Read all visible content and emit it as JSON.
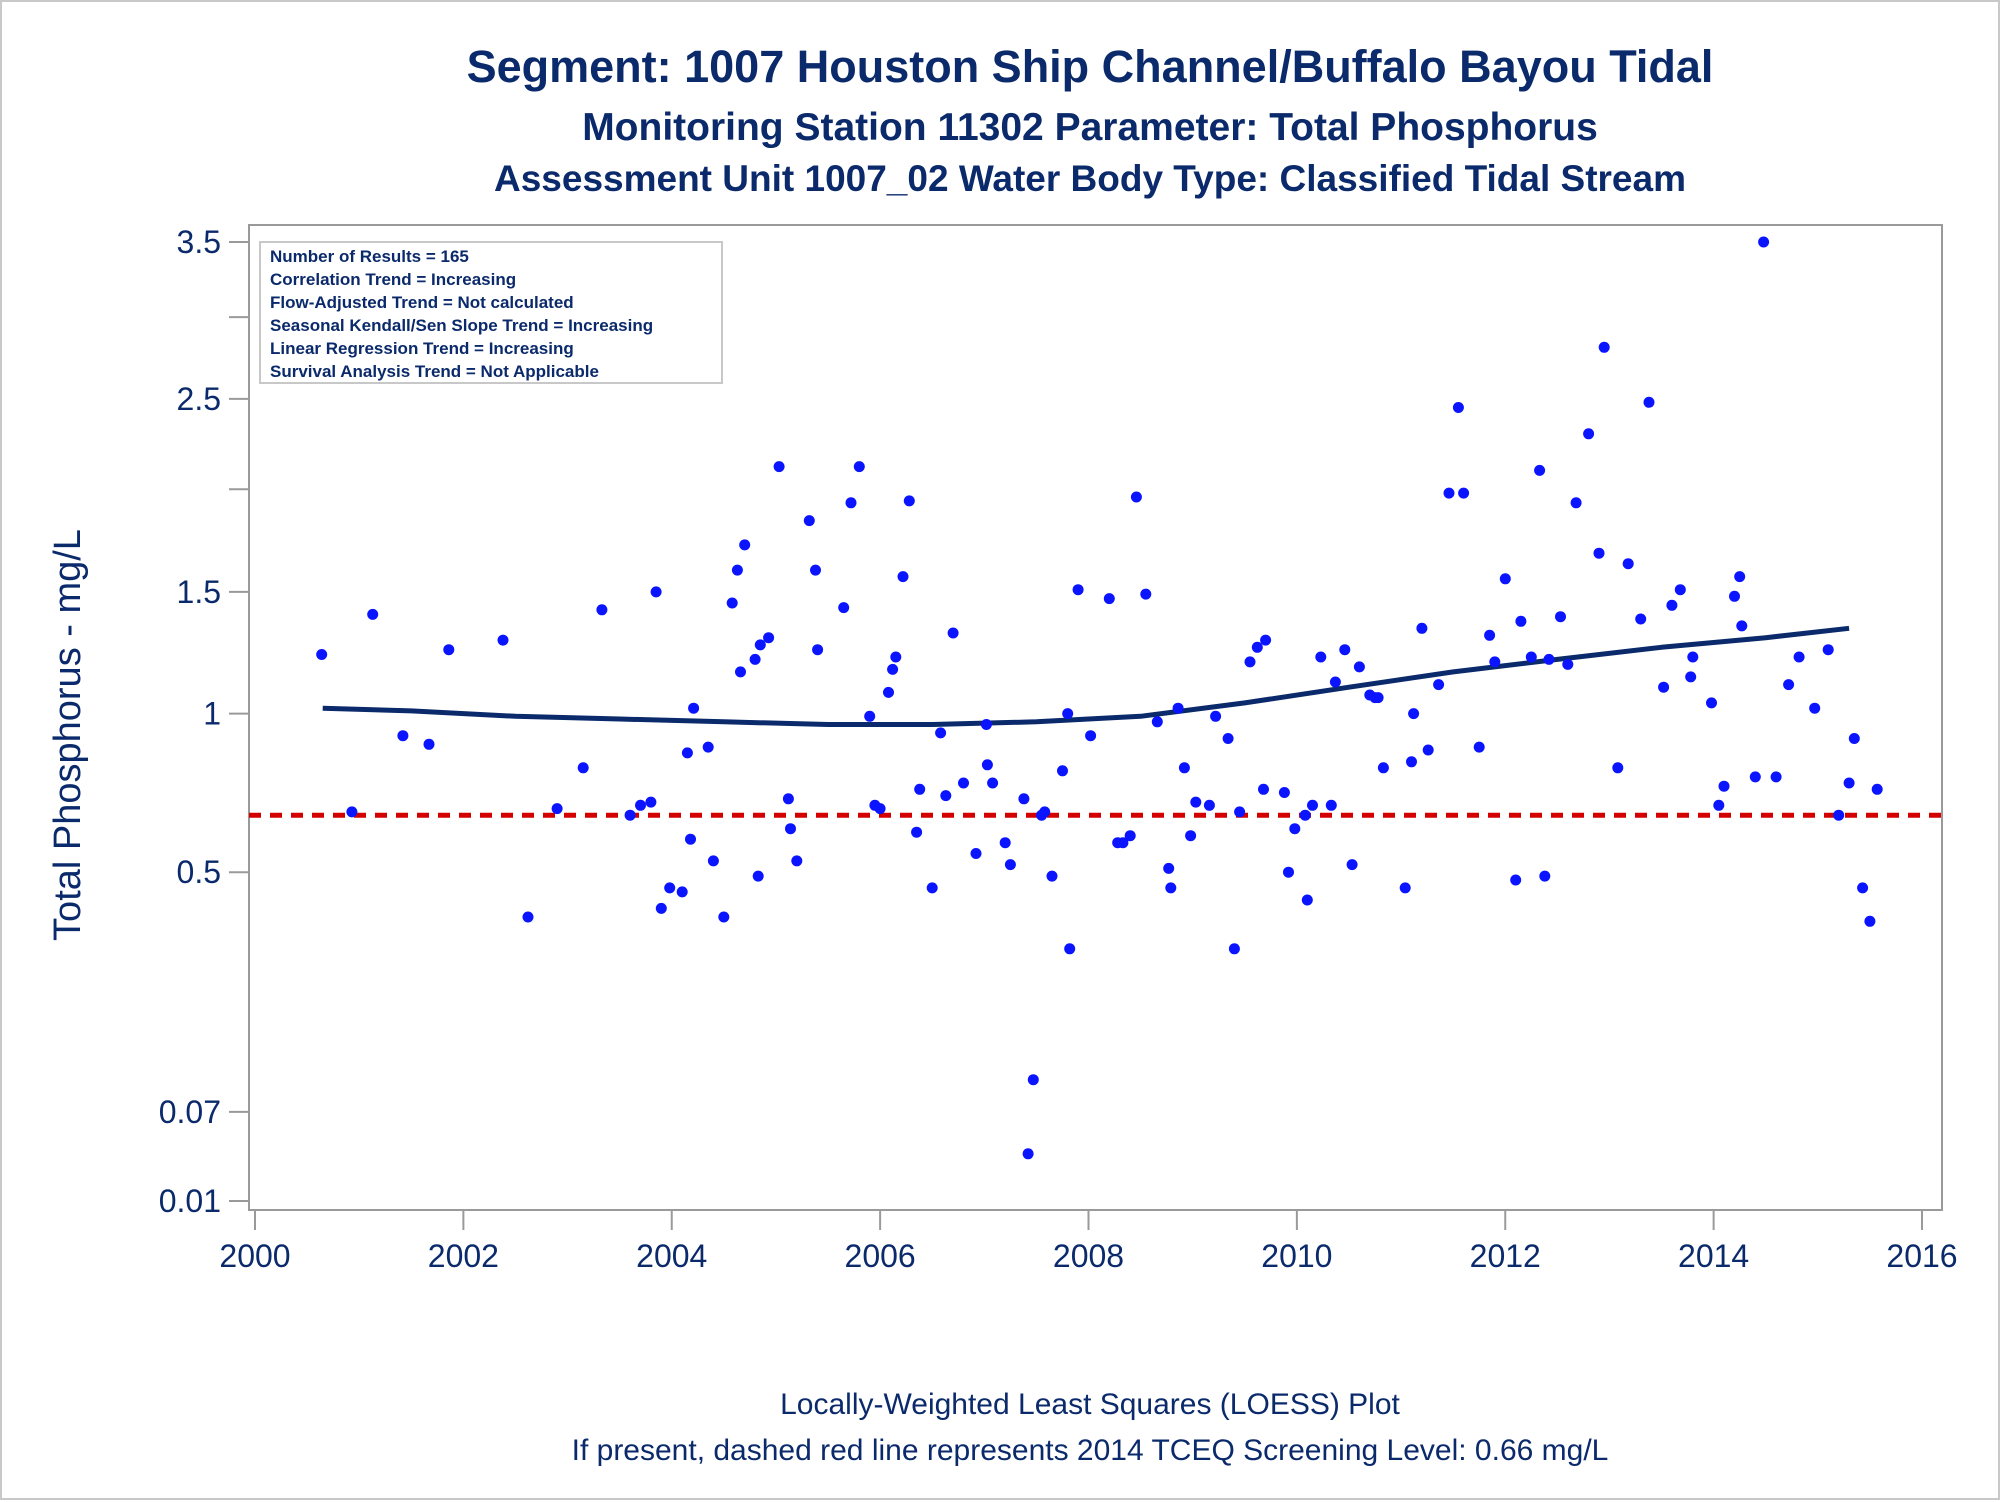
{
  "titles": {
    "line1": "Segment: 1007  Houston Ship Channel/Buffalo Bayou Tidal",
    "line2": "Monitoring Station 11302 Parameter: Total Phosphorus",
    "line3": "Assessment Unit 1007_02   Water Body Type: Classified Tidal Stream"
  },
  "info_box": [
    "Number of Results = 165",
    "Correlation Trend = Increasing",
    "Flow-Adjusted Trend = Not calculated",
    "Seasonal Kendall/Sen Slope Trend = Increasing",
    "Linear Regression Trend = Increasing",
    "Survival Analysis Trend = Not Applicable"
  ],
  "footer": {
    "line1": "Locally-Weighted Least Squares (LOESS) Plot",
    "line2": "If present, dashed red line represents 2014 TCEQ Screening Level: 0.66 mg/L"
  },
  "colors": {
    "points": "#0a14ff",
    "loess": "#0b2a6b",
    "screening": "#d40000",
    "text": "#0b2a6b",
    "axis": "#9a9a9a"
  },
  "chart_data": {
    "type": "scatter",
    "ylabel": "Total Phosphorus - mg/L",
    "xlabel": "",
    "xlim": [
      2000,
      2016
    ],
    "ylim_display": [
      0.01,
      3.5
    ],
    "y_scale": "square-root",
    "x_ticks": [
      "2000",
      "2002",
      "2004",
      "2006",
      "2008",
      "2010",
      "2012",
      "2014",
      "2016"
    ],
    "y_ticks": [
      "3.5",
      "2.5",
      "1.5",
      "1",
      "0.5",
      "0.07",
      "0.01"
    ],
    "y_tick_values": [
      3.5,
      2.5,
      1.5,
      1,
      0.5,
      0.07,
      0.01
    ],
    "y_minor_tick_values": [
      3.0,
      2.0
    ],
    "screening_level": 0.66,
    "grid": false,
    "loess": [
      [
        2000.65,
        1.02
      ],
      [
        2001.5,
        1.01
      ],
      [
        2002.5,
        0.99
      ],
      [
        2003.5,
        0.98
      ],
      [
        2004.5,
        0.97
      ],
      [
        2005.5,
        0.96
      ],
      [
        2006.5,
        0.96
      ],
      [
        2007.5,
        0.97
      ],
      [
        2008.5,
        0.99
      ],
      [
        2009.5,
        1.04
      ],
      [
        2010.5,
        1.1
      ],
      [
        2011.5,
        1.16
      ],
      [
        2012.5,
        1.21
      ],
      [
        2013.5,
        1.26
      ],
      [
        2014.5,
        1.3
      ],
      [
        2015.3,
        1.34
      ]
    ],
    "points": [
      [
        2000.64,
        1.23
      ],
      [
        2000.93,
        0.67
      ],
      [
        2001.13,
        1.4
      ],
      [
        2001.42,
        0.92
      ],
      [
        2001.67,
        0.89
      ],
      [
        2001.86,
        1.25
      ],
      [
        2002.38,
        1.29
      ],
      [
        2002.62,
        0.39
      ],
      [
        2002.9,
        0.68
      ],
      [
        2003.15,
        0.81
      ],
      [
        2003.33,
        1.42
      ],
      [
        2003.6,
        0.66
      ],
      [
        2003.7,
        0.69
      ],
      [
        2003.8,
        0.7
      ],
      [
        2003.85,
        1.5
      ],
      [
        2003.9,
        0.41
      ],
      [
        2003.98,
        0.46
      ],
      [
        2004.1,
        0.45
      ],
      [
        2004.15,
        0.86
      ],
      [
        2004.18,
        0.59
      ],
      [
        2004.21,
        1.02
      ],
      [
        2004.35,
        0.88
      ],
      [
        2004.4,
        0.53
      ],
      [
        2004.5,
        0.39
      ],
      [
        2004.58,
        1.45
      ],
      [
        2004.63,
        1.6
      ],
      [
        2004.66,
        1.16
      ],
      [
        2004.7,
        1.72
      ],
      [
        2004.8,
        1.21
      ],
      [
        2004.83,
        0.49
      ],
      [
        2004.85,
        1.27
      ],
      [
        2004.93,
        1.3
      ],
      [
        2005.03,
        2.12
      ],
      [
        2005.12,
        0.71
      ],
      [
        2005.14,
        0.62
      ],
      [
        2005.2,
        0.53
      ],
      [
        2005.32,
        1.84
      ],
      [
        2005.38,
        1.6
      ],
      [
        2005.4,
        1.25
      ],
      [
        2005.65,
        1.43
      ],
      [
        2005.72,
        1.93
      ],
      [
        2005.8,
        2.12
      ],
      [
        2005.9,
        0.99
      ],
      [
        2005.95,
        0.69
      ],
      [
        2006.0,
        0.68
      ],
      [
        2006.08,
        1.08
      ],
      [
        2006.12,
        1.17
      ],
      [
        2006.15,
        1.22
      ],
      [
        2006.22,
        1.57
      ],
      [
        2006.28,
        1.94
      ],
      [
        2006.35,
        0.61
      ],
      [
        2006.38,
        0.74
      ],
      [
        2006.5,
        0.46
      ],
      [
        2006.58,
        0.93
      ],
      [
        2006.63,
        0.72
      ],
      [
        2006.7,
        1.32
      ],
      [
        2006.8,
        0.76
      ],
      [
        2006.92,
        0.55
      ],
      [
        2007.02,
        0.96
      ],
      [
        2007.03,
        0.82
      ],
      [
        2007.08,
        0.76
      ],
      [
        2007.2,
        0.58
      ],
      [
        2007.25,
        0.52
      ],
      [
        2007.38,
        0.71
      ],
      [
        2007.42,
        0.035
      ],
      [
        2007.47,
        0.105
      ],
      [
        2007.55,
        0.66
      ],
      [
        2007.58,
        0.67
      ],
      [
        2007.65,
        0.49
      ],
      [
        2007.75,
        0.8
      ],
      [
        2007.8,
        1.0
      ],
      [
        2007.82,
        0.32
      ],
      [
        2007.9,
        1.51
      ],
      [
        2008.02,
        0.92
      ],
      [
        2008.2,
        1.47
      ],
      [
        2008.28,
        0.58
      ],
      [
        2008.33,
        0.58
      ],
      [
        2008.4,
        0.6
      ],
      [
        2008.46,
        1.96
      ],
      [
        2008.55,
        1.49
      ],
      [
        2008.66,
        0.97
      ],
      [
        2008.77,
        0.51
      ],
      [
        2008.79,
        0.46
      ],
      [
        2008.86,
        1.02
      ],
      [
        2008.92,
        0.81
      ],
      [
        2008.98,
        0.6
      ],
      [
        2009.03,
        0.7
      ],
      [
        2009.16,
        0.69
      ],
      [
        2009.22,
        0.99
      ],
      [
        2009.34,
        0.91
      ],
      [
        2009.4,
        0.32
      ],
      [
        2009.45,
        0.67
      ],
      [
        2009.55,
        1.2
      ],
      [
        2009.62,
        1.26
      ],
      [
        2009.68,
        0.74
      ],
      [
        2009.7,
        1.29
      ],
      [
        2009.88,
        0.73
      ],
      [
        2009.92,
        0.5
      ],
      [
        2009.98,
        0.62
      ],
      [
        2010.08,
        0.66
      ],
      [
        2010.1,
        0.43
      ],
      [
        2010.15,
        0.69
      ],
      [
        2010.23,
        1.22
      ],
      [
        2010.33,
        0.69
      ],
      [
        2010.37,
        1.12
      ],
      [
        2010.46,
        1.25
      ],
      [
        2010.53,
        0.52
      ],
      [
        2010.6,
        1.18
      ],
      [
        2010.7,
        1.07
      ],
      [
        2010.75,
        1.06
      ],
      [
        2010.78,
        1.06
      ],
      [
        2010.83,
        0.81
      ],
      [
        2011.04,
        0.46
      ],
      [
        2011.1,
        0.83
      ],
      [
        2011.12,
        1.0
      ],
      [
        2011.2,
        1.34
      ],
      [
        2011.26,
        0.87
      ],
      [
        2011.36,
        1.11
      ],
      [
        2011.46,
        1.98
      ],
      [
        2011.55,
        2.45
      ],
      [
        2011.6,
        1.98
      ],
      [
        2011.75,
        0.88
      ],
      [
        2011.85,
        1.31
      ],
      [
        2011.9,
        1.2
      ],
      [
        2012.0,
        1.56
      ],
      [
        2012.1,
        0.48
      ],
      [
        2012.15,
        1.37
      ],
      [
        2012.25,
        1.22
      ],
      [
        2012.33,
        2.1
      ],
      [
        2012.38,
        0.49
      ],
      [
        2012.42,
        1.21
      ],
      [
        2012.53,
        1.39
      ],
      [
        2012.6,
        1.19
      ],
      [
        2012.68,
        1.93
      ],
      [
        2012.8,
        2.3
      ],
      [
        2012.9,
        1.68
      ],
      [
        2012.95,
        2.81
      ],
      [
        2013.08,
        0.81
      ],
      [
        2013.18,
        1.63
      ],
      [
        2013.3,
        1.38
      ],
      [
        2013.38,
        2.48
      ],
      [
        2013.52,
        1.1
      ],
      [
        2013.6,
        1.44
      ],
      [
        2013.68,
        1.51
      ],
      [
        2013.78,
        1.14
      ],
      [
        2013.8,
        1.22
      ],
      [
        2013.98,
        1.04
      ],
      [
        2014.05,
        0.69
      ],
      [
        2014.1,
        0.75
      ],
      [
        2014.2,
        1.48
      ],
      [
        2014.25,
        1.57
      ],
      [
        2014.27,
        1.35
      ],
      [
        2014.4,
        0.78
      ],
      [
        2014.48,
        3.5
      ],
      [
        2014.6,
        0.78
      ],
      [
        2014.72,
        1.11
      ],
      [
        2014.82,
        1.22
      ],
      [
        2014.97,
        1.02
      ],
      [
        2015.1,
        1.25
      ],
      [
        2015.2,
        0.66
      ],
      [
        2015.3,
        0.76
      ],
      [
        2015.35,
        0.91
      ],
      [
        2015.43,
        0.46
      ],
      [
        2015.5,
        0.38
      ],
      [
        2015.57,
        0.74
      ]
    ]
  }
}
